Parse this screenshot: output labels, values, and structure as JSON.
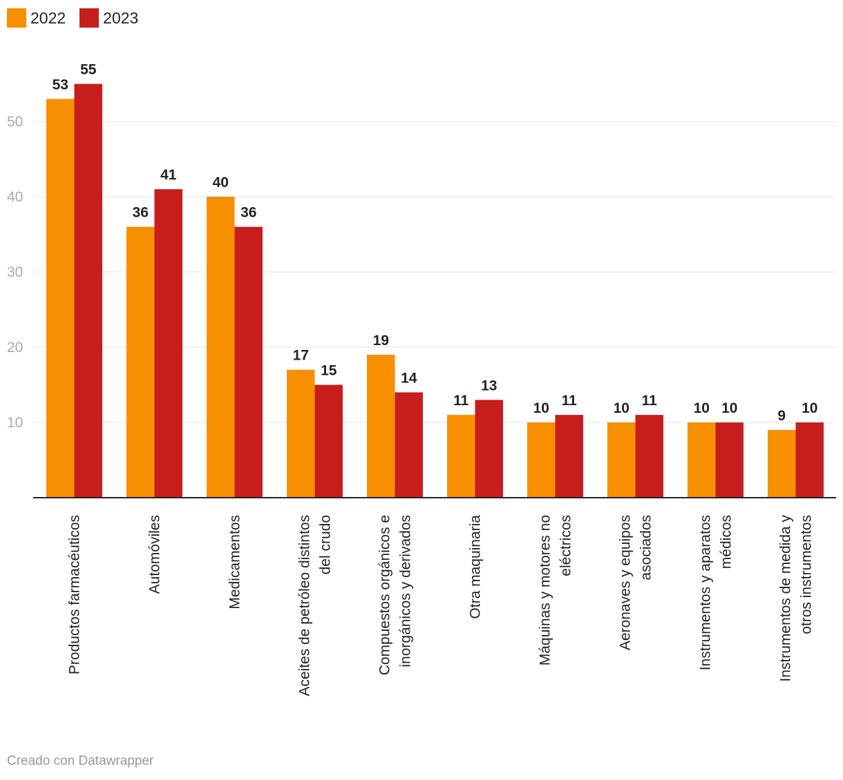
{
  "chart_data": {
    "type": "bar",
    "title": "",
    "xlabel": "",
    "ylabel": "",
    "ylim": [
      0,
      58
    ],
    "yticks": [
      10,
      20,
      30,
      40,
      50
    ],
    "categories": [
      [
        "Productos farmacéuticos"
      ],
      [
        "Automóviles"
      ],
      [
        "Medicamentos"
      ],
      [
        "Aceites de petróleo distintos",
        "del crudo"
      ],
      [
        "Compuestos orgánicos e",
        "inorgánicos y derivados"
      ],
      [
        "Otra maquinaria"
      ],
      [
        "Máquinas y motores no",
        "eléctricos"
      ],
      [
        "Aeronaves y equipos",
        "asociados"
      ],
      [
        "Instrumentos y aparatos",
        "médicos"
      ],
      [
        "Instrumentos de medida y",
        "otros instrumentos"
      ]
    ],
    "series": [
      {
        "name": "2022",
        "color": "#f88f00",
        "values": [
          53,
          36,
          40,
          17,
          19,
          11,
          10,
          10,
          10,
          9
        ]
      },
      {
        "name": "2023",
        "color": "#c71e1d",
        "values": [
          55,
          41,
          36,
          15,
          14,
          13,
          11,
          11,
          10,
          10
        ]
      }
    ],
    "legend_position": "top-left"
  },
  "footer": {
    "credit": "Creado con Datawrapper"
  }
}
